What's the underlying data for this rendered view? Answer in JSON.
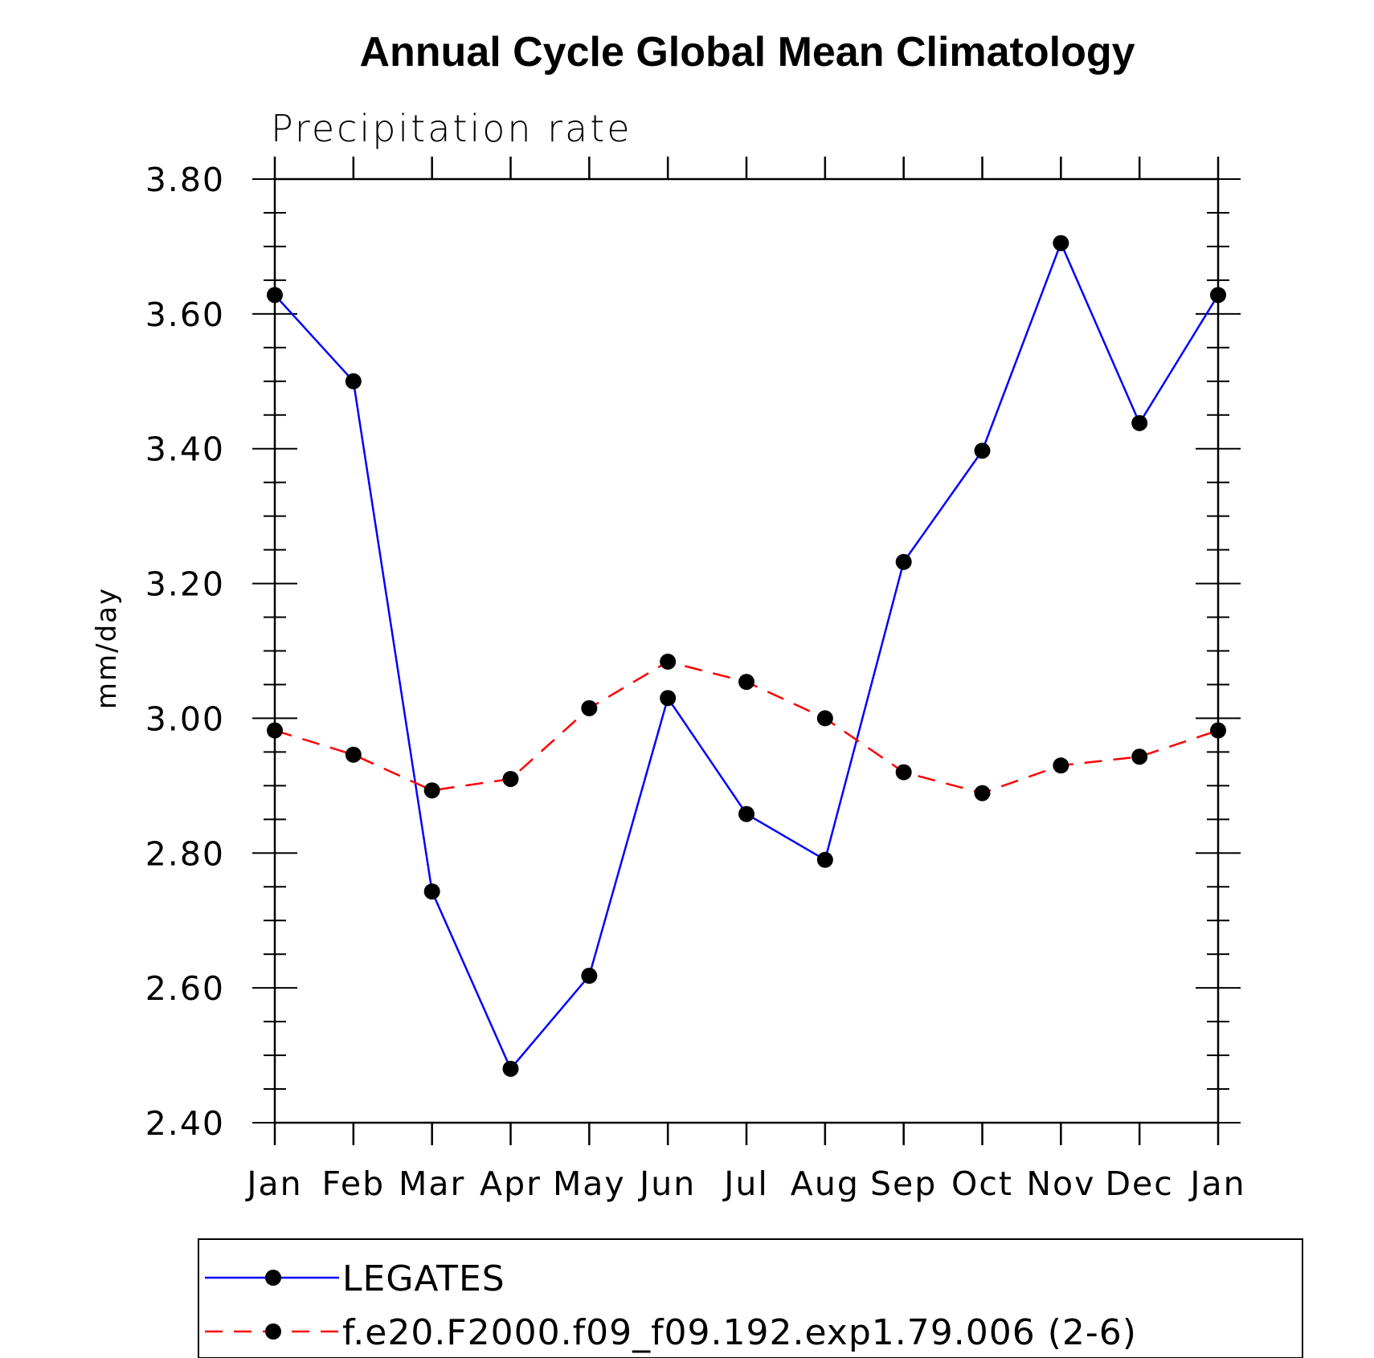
{
  "chart_data": {
    "type": "line",
    "title": "Annual Cycle Global Mean Climatology",
    "subtitle": "Precipitation rate",
    "ylabel": "mm/day",
    "xlabel": "",
    "categories": [
      "Jan",
      "Feb",
      "Mar",
      "Apr",
      "May",
      "Jun",
      "Jul",
      "Aug",
      "Sep",
      "Oct",
      "Nov",
      "Dec",
      "Jan"
    ],
    "ylim": [
      2.4,
      3.8
    ],
    "yticks": [
      "2.40",
      "2.60",
      "2.80",
      "3.00",
      "3.20",
      "3.40",
      "3.60",
      "3.80"
    ],
    "grid": false,
    "legend_position": "bottom",
    "series": [
      {
        "name": "LEGATES",
        "color": "#0000ff",
        "line_style": "solid",
        "marker": "filled-circle",
        "values": [
          3.628,
          3.5,
          2.743,
          2.48,
          2.618,
          3.03,
          2.858,
          2.79,
          3.232,
          3.397,
          3.705,
          3.438,
          3.628
        ]
      },
      {
        "name": "f.e20.F2000.f09_f09.192.exp1.79.006 (2-6)",
        "color": "#ff0000",
        "line_style": "dashed",
        "marker": "filled-circle",
        "values": [
          2.982,
          2.946,
          2.893,
          2.91,
          3.015,
          3.084,
          3.054,
          3.0,
          2.92,
          2.889,
          2.93,
          2.943,
          2.982
        ]
      }
    ]
  }
}
